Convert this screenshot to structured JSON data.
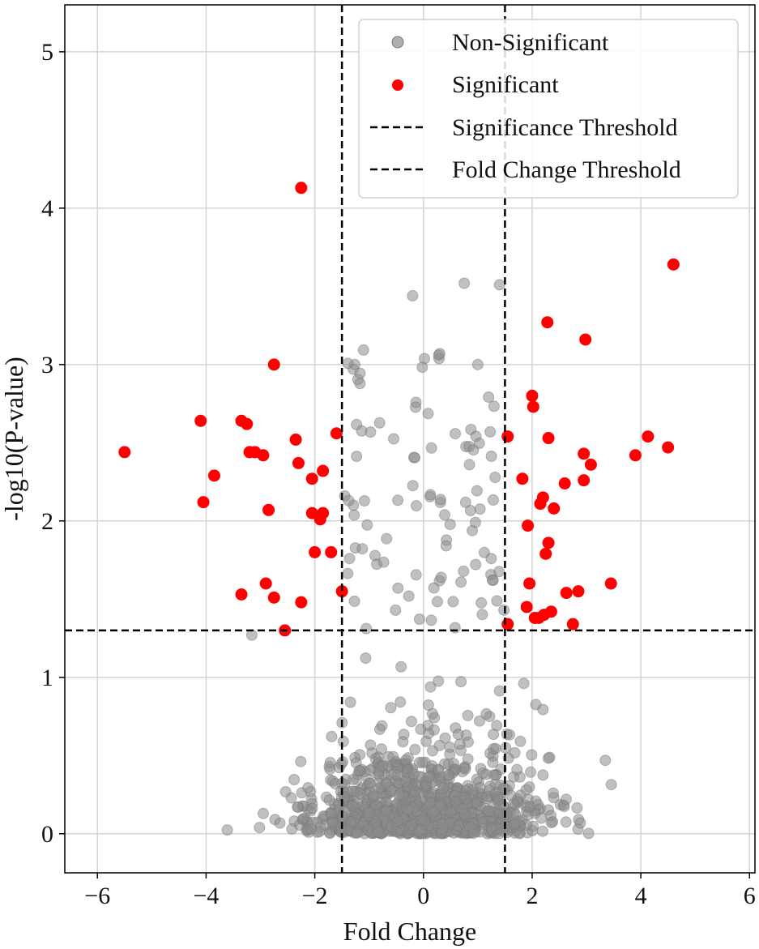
{
  "chart_data": {
    "type": "scatter",
    "title": "",
    "xlabel": "Fold Change",
    "ylabel": "-log10(P-value)",
    "xlim": [
      -6.6,
      6.1
    ],
    "ylim": [
      -0.25,
      5.3
    ],
    "xticks": [
      -6,
      -4,
      -2,
      0,
      2,
      4,
      6
    ],
    "xtick_labels": [
      "−6",
      "−4",
      "−2",
      "0",
      "2",
      "4",
      "6"
    ],
    "yticks": [
      0,
      1,
      2,
      3,
      4,
      5
    ],
    "ytick_labels": [
      "0",
      "1",
      "2",
      "3",
      "4",
      "5"
    ],
    "grid": true,
    "legend_position": "top-right",
    "colors": {
      "non_significant": "#8c8c8c",
      "significant": "#ff0000",
      "threshold": "#000000"
    },
    "thresholds": {
      "significance": {
        "label": "Significance Threshold",
        "y": 1.3
      },
      "fold_change": {
        "label": "Fold Change Threshold",
        "x": [
          -1.5,
          1.5
        ]
      }
    },
    "series": [
      {
        "name": "Significant",
        "points": [
          [
            -2.25,
            4.13
          ],
          [
            4.6,
            3.64
          ],
          [
            2.28,
            3.27
          ],
          [
            2.98,
            3.16
          ],
          [
            -2.75,
            3.0
          ],
          [
            2.0,
            2.8
          ],
          [
            2.02,
            2.73
          ],
          [
            -4.1,
            2.64
          ],
          [
            -3.35,
            2.64
          ],
          [
            -3.25,
            2.62
          ],
          [
            -1.6,
            2.56
          ],
          [
            -2.35,
            2.52
          ],
          [
            1.55,
            2.54
          ],
          [
            2.3,
            2.53
          ],
          [
            4.13,
            2.54
          ],
          [
            4.5,
            2.47
          ],
          [
            -5.5,
            2.44
          ],
          [
            -3.2,
            2.44
          ],
          [
            -3.1,
            2.44
          ],
          [
            -2.95,
            2.42
          ],
          [
            2.95,
            2.43
          ],
          [
            3.9,
            2.42
          ],
          [
            -2.3,
            2.37
          ],
          [
            3.08,
            2.36
          ],
          [
            -1.85,
            2.32
          ],
          [
            -3.85,
            2.29
          ],
          [
            1.82,
            2.27
          ],
          [
            -2.05,
            2.27
          ],
          [
            2.95,
            2.26
          ],
          [
            2.6,
            2.24
          ],
          [
            2.2,
            2.15
          ],
          [
            2.15,
            2.11
          ],
          [
            -4.05,
            2.12
          ],
          [
            2.4,
            2.08
          ],
          [
            -2.85,
            2.07
          ],
          [
            -2.05,
            2.05
          ],
          [
            -1.85,
            2.05
          ],
          [
            -1.9,
            2.01
          ],
          [
            1.92,
            1.97
          ],
          [
            2.3,
            1.86
          ],
          [
            -2.0,
            1.8
          ],
          [
            -1.7,
            1.8
          ],
          [
            2.25,
            1.79
          ],
          [
            3.45,
            1.6
          ],
          [
            -2.9,
            1.6
          ],
          [
            1.95,
            1.6
          ],
          [
            2.63,
            1.54
          ],
          [
            2.85,
            1.55
          ],
          [
            -1.5,
            1.55
          ],
          [
            -3.35,
            1.53
          ],
          [
            -2.75,
            1.51
          ],
          [
            -2.25,
            1.48
          ],
          [
            1.9,
            1.45
          ],
          [
            2.35,
            1.42
          ],
          [
            2.22,
            1.4
          ],
          [
            2.12,
            1.38
          ],
          [
            2.05,
            1.38
          ],
          [
            2.75,
            1.34
          ],
          [
            1.55,
            1.34
          ],
          [
            -2.55,
            1.3
          ]
        ]
      }
    ]
  },
  "legend": {
    "entries": [
      {
        "label": "Non-Significant"
      },
      {
        "label": "Significant"
      },
      {
        "label": "Significance Threshold"
      },
      {
        "label": "Fold Change Threshold"
      }
    ]
  }
}
